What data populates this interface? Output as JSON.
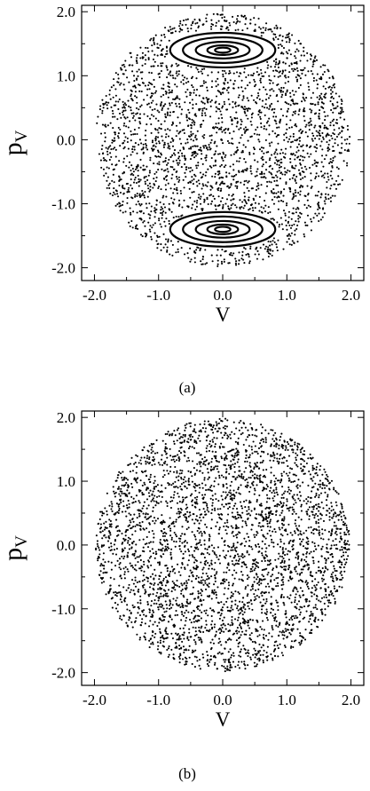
{
  "chart_data": [
    {
      "type": "scatter",
      "panel_label": "(a)",
      "title": "",
      "xlabel": "V",
      "ylabel": "p",
      "ylabel_subscript": "V",
      "xlim": [
        -2.2,
        2.2
      ],
      "ylim": [
        -2.2,
        2.1
      ],
      "xticks": [
        -2.0,
        -1.0,
        0.0,
        1.0,
        2.0
      ],
      "xtick_labels": [
        "-2.0",
        "-1.0",
        "0.0",
        "1.0",
        "2.0"
      ],
      "yticks": [
        -2.0,
        -1.0,
        0.0,
        1.0,
        2.0
      ],
      "ytick_labels": [
        "-2.0",
        "-1.0",
        "0.0",
        "1.0",
        "2.0"
      ],
      "grid": false,
      "legend": "none",
      "color": "#000000",
      "chaotic_region": {
        "center": [
          0.0,
          0.0
        ],
        "radius": 1.98
      },
      "islands": [
        {
          "center": [
            0.0,
            1.4
          ],
          "semi_axes": [
            [
              0.82,
              0.27
            ],
            [
              0.62,
              0.2
            ],
            [
              0.42,
              0.13
            ],
            [
              0.24,
              0.075
            ],
            [
              0.12,
              0.04
            ]
          ]
        },
        {
          "center": [
            0.0,
            -1.4
          ],
          "semi_axes": [
            [
              0.82,
              0.27
            ],
            [
              0.62,
              0.2
            ],
            [
              0.42,
              0.13
            ],
            [
              0.24,
              0.075
            ],
            [
              0.12,
              0.04
            ]
          ]
        }
      ]
    },
    {
      "type": "scatter",
      "panel_label": "(b)",
      "title": "",
      "xlabel": "V",
      "ylabel": "p",
      "ylabel_subscript": "V",
      "xlim": [
        -2.2,
        2.2
      ],
      "ylim": [
        -2.2,
        2.1
      ],
      "xticks": [
        -2.0,
        -1.0,
        0.0,
        1.0,
        2.0
      ],
      "xtick_labels": [
        "-2.0",
        "-1.0",
        "0.0",
        "1.0",
        "2.0"
      ],
      "yticks": [
        -2.0,
        -1.0,
        0.0,
        1.0,
        2.0
      ],
      "ytick_labels": [
        "-2.0",
        "-1.0",
        "0.0",
        "1.0",
        "2.0"
      ],
      "grid": false,
      "legend": "none",
      "color": "#000000",
      "chaotic_region": {
        "center": [
          0.0,
          0.0
        ],
        "radius": 1.98
      },
      "islands": []
    }
  ]
}
